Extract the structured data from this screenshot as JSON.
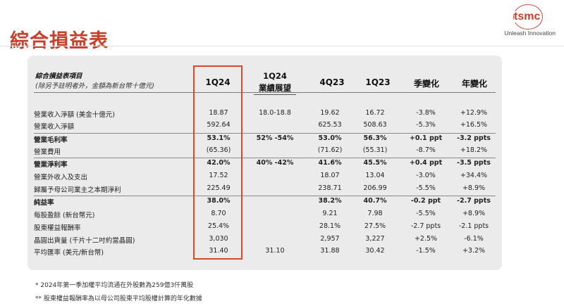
{
  "header": {
    "title": "綜合損益表",
    "logo_text": "tsmc",
    "tagline": "Unleash Innovation"
  },
  "table": {
    "label_title": "綜合損益表項目",
    "label_subtitle": "(除另予註明者外，金額為新台幣十億元)",
    "columns": [
      {
        "key": "q124",
        "label": "1Q24"
      },
      {
        "key": "guide",
        "label_line1": "1Q24",
        "label_line2": "業績展望"
      },
      {
        "key": "q423",
        "label": "4Q23"
      },
      {
        "key": "q123",
        "label": "1Q23"
      },
      {
        "key": "qoq",
        "label": "季變化"
      },
      {
        "key": "yoy",
        "label": "年變化"
      }
    ],
    "rows": [
      {
        "label": "營業收入淨額 (美金十億元)",
        "q124": "18.87",
        "guide": "18.0-18.8",
        "q423": "19.62",
        "q123": "16.72",
        "qoq": "-3.8%",
        "yoy": "+12.9%",
        "bold": false
      },
      {
        "label": "營業收入淨額",
        "q124": "592.64",
        "guide": "",
        "q423": "625.53",
        "q123": "508.63",
        "qoq": "-5.3%",
        "yoy": "+16.5%",
        "bold": false
      },
      {
        "label": "營業毛利率",
        "q124": "53.1%",
        "guide": "52% -54%",
        "q423": "53.0%",
        "q123": "56.3%",
        "qoq": "+0.1 ppt",
        "yoy": "-3.2 ppts",
        "bold": true
      },
      {
        "label": "營業費用",
        "q124": "(65.36)",
        "guide": "",
        "q423": "(71.62)",
        "q123": "(55.31)",
        "qoq": "-8.7%",
        "yoy": "+18.2%",
        "bold": false
      },
      {
        "label": "營業淨利率",
        "q124": "42.0%",
        "guide": "40% -42%",
        "q423": "41.6%",
        "q123": "45.5%",
        "qoq": "+0.4 ppt",
        "yoy": "-3.5 ppts",
        "bold": true
      },
      {
        "label": "營業外收入及支出",
        "q124": "17.52",
        "guide": "",
        "q423": "18.07",
        "q123": "13.04",
        "qoq": "-3.0%",
        "yoy": "+34.4%",
        "bold": false
      },
      {
        "label": "歸屬予母公司業主之本期淨利",
        "q124": "225.49",
        "guide": "",
        "q423": "238.71",
        "q123": "206.99",
        "qoq": "-5.5%",
        "yoy": "+8.9%",
        "bold": false
      },
      {
        "label": "純益率",
        "q124": "38.0%",
        "guide": "",
        "q423": "38.2%",
        "q123": "40.7%",
        "qoq": "-0.2 ppt",
        "yoy": "-2.7 ppts",
        "bold": true
      },
      {
        "label": "每股盈餘 (新台幣元)",
        "q124": "8.70",
        "guide": "",
        "q423": "9.21",
        "q123": "7.98",
        "qoq": "-5.5%",
        "yoy": "+8.9%",
        "bold": false
      },
      {
        "label": "股東權益報酬率",
        "q124": "25.4%",
        "guide": "",
        "q423": "28.1%",
        "q123": "27.5%",
        "qoq": "-2.7 ppts",
        "yoy": "-2.1 ppts",
        "bold": false
      },
      {
        "label": "晶圓出貨量 (千片十二吋約當晶圓)",
        "q124": "3,030",
        "guide": "",
        "q423": "2,957",
        "q123": "3,227",
        "qoq": "+2.5%",
        "yoy": "-6.1%",
        "bold": false
      },
      {
        "label": "平均匯率 (美元/新台幣)",
        "q124": "31.40",
        "guide": "31.10",
        "q423": "31.88",
        "q123": "30.42",
        "qoq": "-1.5%",
        "yoy": "+3.2%",
        "bold": false
      }
    ]
  },
  "footnotes": [
    "*    2024年第一季加權平均流通在外股數為259億3仟萬股",
    "**  股東權益報酬率為以母公司股東平均股權計算的年化數據"
  ]
}
